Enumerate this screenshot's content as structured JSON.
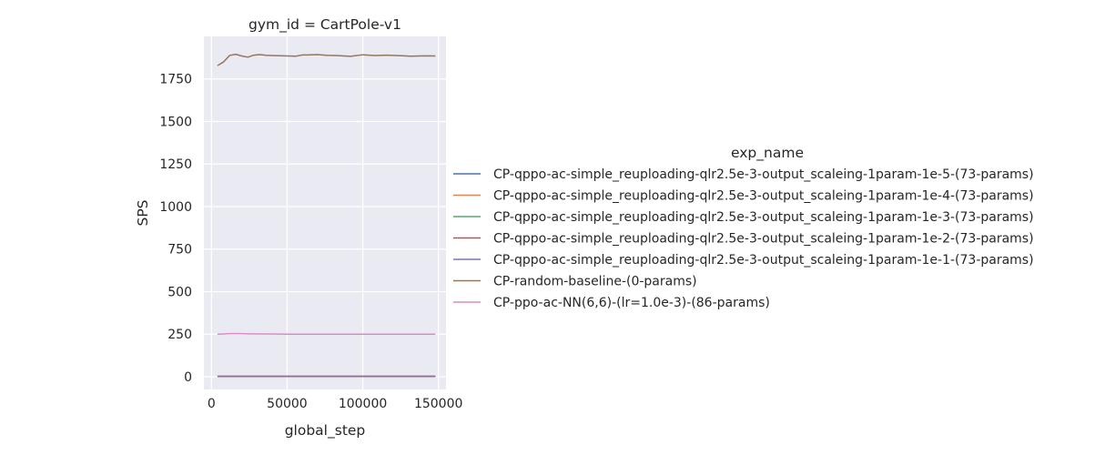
{
  "chart_data": {
    "type": "line",
    "title": "gym_id = CartPole-v1",
    "xlabel": "global_step",
    "ylabel": "SPS",
    "xlim": [
      -5000,
      155000
    ],
    "ylim": [
      -75,
      2000
    ],
    "xticks": [
      0,
      50000,
      100000,
      150000
    ],
    "xtick_labels": [
      "0",
      "50000",
      "100000",
      "150000"
    ],
    "yticks": [
      0,
      250,
      500,
      750,
      1000,
      1250,
      1500,
      1750
    ],
    "ytick_labels": [
      "0",
      "250",
      "500",
      "750",
      "1000",
      "1250",
      "1500",
      "1750"
    ],
    "grid": true,
    "legend_title": "exp_name",
    "legend_position": "right",
    "series": [
      {
        "name": "CP-qppo-ac-simple_reuploading-qlr2.5e-3-output_scaleing-1param-1e-5-(73-params)",
        "color": "#4c72b0",
        "x": [
          4000,
          20000,
          40000,
          60000,
          80000,
          100000,
          120000,
          148000
        ],
        "y": [
          2,
          2,
          2,
          2,
          2,
          2,
          2,
          2
        ]
      },
      {
        "name": "CP-qppo-ac-simple_reuploading-qlr2.5e-3-output_scaleing-1param-1e-4-(73-params)",
        "color": "#dd8452",
        "x": [
          4000,
          20000,
          40000,
          60000,
          80000,
          100000,
          120000,
          148000
        ],
        "y": [
          2,
          2,
          2,
          2,
          2,
          2,
          2,
          2
        ]
      },
      {
        "name": "CP-qppo-ac-simple_reuploading-qlr2.5e-3-output_scaleing-1param-1e-3-(73-params)",
        "color": "#55a868",
        "x": [
          4000,
          20000,
          40000,
          60000,
          80000,
          100000,
          120000,
          148000
        ],
        "y": [
          2,
          2,
          2,
          2,
          2,
          2,
          2,
          2
        ]
      },
      {
        "name": "CP-qppo-ac-simple_reuploading-qlr2.5e-3-output_scaleing-1param-1e-2-(73-params)",
        "color": "#c44e52",
        "x": [
          4000,
          20000,
          40000,
          60000,
          80000,
          100000,
          120000,
          148000
        ],
        "y": [
          2,
          2,
          2,
          2,
          2,
          2,
          2,
          2
        ]
      },
      {
        "name": "CP-qppo-ac-simple_reuploading-qlr2.5e-3-output_scaleing-1param-1e-1-(73-params)",
        "color": "#8172b3",
        "x": [
          4000,
          20000,
          40000,
          60000,
          80000,
          100000,
          120000,
          148000
        ],
        "y": [
          2,
          2,
          2,
          2,
          2,
          2,
          2,
          2
        ]
      },
      {
        "name": "CP-random-baseline-(0-params)",
        "color": "#937860",
        "x": [
          4000,
          8000,
          12000,
          16000,
          20000,
          24000,
          28000,
          32000,
          36000,
          40000,
          48000,
          56000,
          60000,
          64000,
          70000,
          76000,
          84000,
          92000,
          100000,
          108000,
          116000,
          124000,
          132000,
          140000,
          148000
        ],
        "y": [
          1828,
          1850,
          1888,
          1895,
          1885,
          1878,
          1890,
          1893,
          1889,
          1888,
          1886,
          1884,
          1891,
          1891,
          1893,
          1889,
          1887,
          1883,
          1892,
          1888,
          1890,
          1887,
          1884,
          1886,
          1885
        ]
      },
      {
        "name": "CP-ppo-ac-NN(6,6)-(lr=1.0e-3)-(86-params)",
        "color": "#da8bc3",
        "x": [
          4000,
          8000,
          12000,
          16000,
          20000,
          24000,
          28000,
          32000,
          40000,
          50000,
          60000,
          70000,
          80000,
          90000,
          100000,
          110000,
          120000,
          130000,
          140000,
          148000
        ],
        "y": [
          250,
          251,
          253,
          253,
          253,
          252,
          252,
          251,
          251,
          250,
          250,
          250,
          250,
          250,
          250,
          250,
          250,
          250,
          250,
          250
        ]
      }
    ]
  }
}
